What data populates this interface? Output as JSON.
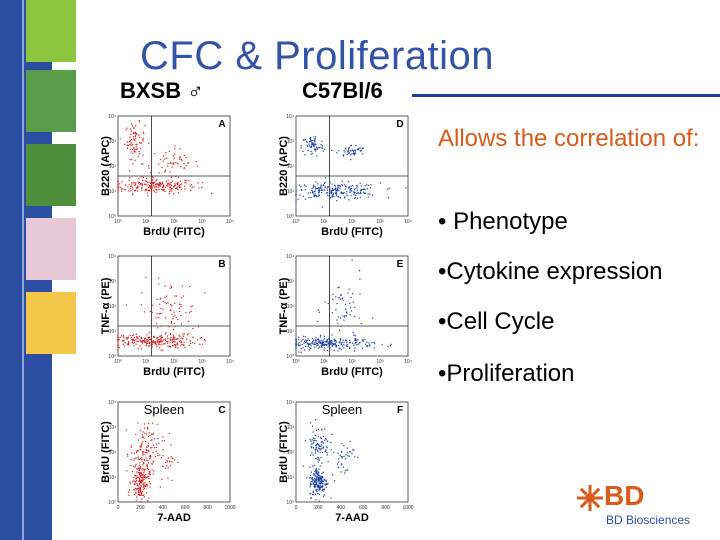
{
  "slide": {
    "title": "CFC & Proliferation",
    "columns": {
      "left": "BXSB ♂",
      "right": "C57Bl/6"
    },
    "intro": "Allows the correlation of:",
    "bullets": [
      "• Phenotype",
      "•Cytokine expression",
      "•Cell Cycle",
      "•Proliferation"
    ],
    "logo": {
      "mark": "BD",
      "sub": "BD Biosciences"
    },
    "colors": {
      "accent_blue": "#3253a6",
      "sidebar": "#2b4ea2",
      "intro_text": "#d85b1c",
      "dot_red": "#d62020",
      "dot_blue": "#1a3fa0"
    }
  },
  "chart_data": [
    {
      "type": "scatter",
      "id": "A",
      "xlabel": "BrdU (FITC)",
      "ylabel": "B220 (APC)",
      "color": "red",
      "scale": "log",
      "xticks": [
        "10⁰",
        "10¹",
        "10²",
        "10³",
        "10⁴"
      ],
      "yticks": [
        "10⁰",
        "10¹",
        "10²",
        "10³",
        "10⁴"
      ],
      "quad_x": 1.2,
      "quad_y": 1.6,
      "xlim": [
        0,
        4
      ],
      "ylim": [
        0,
        4
      ],
      "clusters": [
        {
          "cx": 1.3,
          "cy": 1.2,
          "sx": 0.75,
          "sy": 0.15,
          "n": 220
        },
        {
          "cx": 0.6,
          "cy": 3.0,
          "sx": 0.18,
          "sy": 0.35,
          "n": 80
        },
        {
          "cx": 1.9,
          "cy": 2.1,
          "sx": 0.5,
          "sy": 0.3,
          "n": 60
        }
      ]
    },
    {
      "type": "scatter",
      "id": "D",
      "xlabel": "BrdU (FITC)",
      "ylabel": "B220 (APC)",
      "color": "blue",
      "scale": "log",
      "xticks": [
        "10⁰",
        "10¹",
        "10²",
        "10³",
        "10⁴"
      ],
      "yticks": [
        "10⁰",
        "10¹",
        "10²",
        "10³",
        "10⁴"
      ],
      "quad_x": 1.2,
      "quad_y": 1.6,
      "xlim": [
        0,
        4
      ],
      "ylim": [
        0,
        4
      ],
      "clusters": [
        {
          "cx": 1.4,
          "cy": 1.0,
          "sx": 0.8,
          "sy": 0.16,
          "n": 220
        },
        {
          "cx": 0.6,
          "cy": 2.8,
          "sx": 0.2,
          "sy": 0.22,
          "n": 70
        },
        {
          "cx": 2.0,
          "cy": 2.6,
          "sx": 0.25,
          "sy": 0.12,
          "n": 50
        }
      ]
    },
    {
      "type": "scatter",
      "id": "B",
      "xlabel": "BrdU (FITC)",
      "ylabel": "TNF-α (PE)",
      "color": "red",
      "scale": "log",
      "xticks": [
        "10⁰",
        "10¹",
        "10²",
        "10³",
        "10⁴"
      ],
      "yticks": [
        "10⁰",
        "10¹",
        "10²",
        "10³",
        "10⁴"
      ],
      "quad_x": 1.2,
      "quad_y": 1.2,
      "xlim": [
        0,
        4
      ],
      "ylim": [
        0,
        4
      ],
      "clusters": [
        {
          "cx": 1.2,
          "cy": 0.6,
          "sx": 0.8,
          "sy": 0.14,
          "n": 240
        },
        {
          "cx": 1.8,
          "cy": 1.8,
          "sx": 0.5,
          "sy": 0.6,
          "n": 90
        }
      ]
    },
    {
      "type": "scatter",
      "id": "E",
      "xlabel": "BrdU (FITC)",
      "ylabel": "TNF-α (PE)",
      "color": "blue",
      "scale": "log",
      "xticks": [
        "10⁰",
        "10¹",
        "10²",
        "10³",
        "10⁴"
      ],
      "yticks": [
        "10⁰",
        "10¹",
        "10²",
        "10³",
        "10⁴"
      ],
      "quad_x": 1.2,
      "quad_y": 1.2,
      "xlim": [
        0,
        4
      ],
      "ylim": [
        0,
        4
      ],
      "clusters": [
        {
          "cx": 1.2,
          "cy": 0.5,
          "sx": 0.8,
          "sy": 0.12,
          "n": 240
        },
        {
          "cx": 1.7,
          "cy": 1.8,
          "sx": 0.35,
          "sy": 0.7,
          "n": 60
        }
      ]
    },
    {
      "type": "scatter",
      "id": "C",
      "annotation": "Spleen",
      "xlabel": "7-AAD",
      "ylabel": "BrdU (FITC)",
      "color": "red",
      "scale": "linear-x",
      "xticks": [
        "0",
        "200",
        "400",
        "600",
        "800",
        "1000"
      ],
      "yticks": [
        "10⁰",
        "10¹",
        "10²",
        "10³",
        "10⁴"
      ],
      "xlim": [
        0,
        1000
      ],
      "ylim": [
        0,
        4
      ],
      "clusters": [
        {
          "cx": 200,
          "cy": 0.8,
          "sx": 40,
          "sy": 0.35,
          "n": 170
        },
        {
          "cx": 230,
          "cy": 2.0,
          "sx": 60,
          "sy": 0.55,
          "n": 120
        },
        {
          "cx": 400,
          "cy": 1.8,
          "sx": 60,
          "sy": 0.5,
          "n": 40
        }
      ]
    },
    {
      "type": "scatter",
      "id": "F",
      "annotation": "Spleen",
      "xlabel": "7-AAD",
      "ylabel": "BrdU (FITC)",
      "color": "blue",
      "scale": "linear-x",
      "xticks": [
        "0",
        "200",
        "400",
        "600",
        "800",
        "1000"
      ],
      "yticks": [
        "10⁰",
        "10¹",
        "10²",
        "10³",
        "10⁴"
      ],
      "xlim": [
        0,
        1000
      ],
      "ylim": [
        0,
        4
      ],
      "clusters": [
        {
          "cx": 200,
          "cy": 0.8,
          "sx": 40,
          "sy": 0.3,
          "n": 180
        },
        {
          "cx": 200,
          "cy": 2.3,
          "sx": 50,
          "sy": 0.4,
          "n": 90
        },
        {
          "cx": 420,
          "cy": 1.8,
          "sx": 50,
          "sy": 0.4,
          "n": 40
        }
      ]
    }
  ]
}
